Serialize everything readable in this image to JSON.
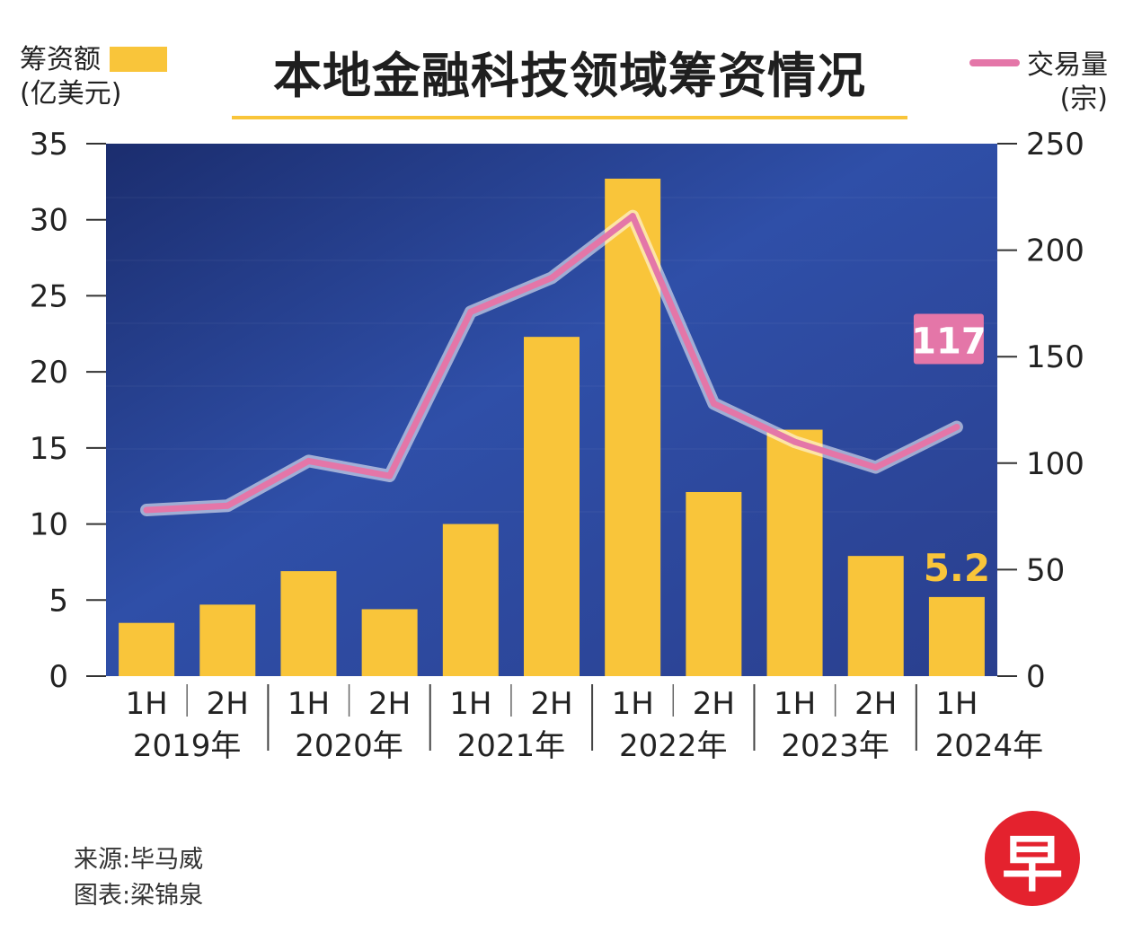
{
  "header": {
    "title": "本地金融科技领域筹资情况",
    "left_legend_line1": "筹资额",
    "left_legend_line2": "(亿美元)",
    "right_legend_line1": "交易量",
    "right_legend_line2": "(宗)"
  },
  "footer": {
    "source": "来源:毕马威",
    "credit": "图表:梁锦泉"
  },
  "logo": {
    "text": "早",
    "color": "#e4222e"
  },
  "colors": {
    "bar": "#f9c53a",
    "line": "#e476a8",
    "plot_bg": "#2b4596"
  },
  "chart_data": {
    "type": "bar",
    "categories": [
      "1H",
      "2H",
      "1H",
      "2H",
      "1H",
      "2H",
      "1H",
      "2H",
      "1H",
      "2H",
      "1H"
    ],
    "years": [
      {
        "label": "2019年",
        "span": 2
      },
      {
        "label": "2020年",
        "span": 2
      },
      {
        "label": "2021年",
        "span": 2
      },
      {
        "label": "2022年",
        "span": 2
      },
      {
        "label": "2023年",
        "span": 2
      },
      {
        "label": "2024年",
        "span": 1
      }
    ],
    "series": [
      {
        "name": "筹资额",
        "type": "bar",
        "axis": "left",
        "values": [
          3.5,
          4.7,
          6.9,
          4.4,
          10.0,
          22.3,
          32.7,
          12.1,
          16.2,
          7.9,
          5.2
        ]
      },
      {
        "name": "交易量",
        "type": "line",
        "axis": "right",
        "values": [
          78,
          80,
          101,
          94,
          171,
          187,
          216,
          128,
          110,
          98,
          117
        ]
      }
    ],
    "annotations": [
      {
        "series": 0,
        "index": 10,
        "text": "5.2"
      },
      {
        "series": 1,
        "index": 10,
        "text": "117"
      }
    ],
    "y_left": {
      "min": 0,
      "max": 35,
      "ticks": [
        0,
        5,
        10,
        15,
        20,
        25,
        30,
        35
      ]
    },
    "y_right": {
      "min": 0,
      "max": 250,
      "ticks": [
        0,
        50,
        100,
        150,
        200,
        250
      ]
    }
  }
}
